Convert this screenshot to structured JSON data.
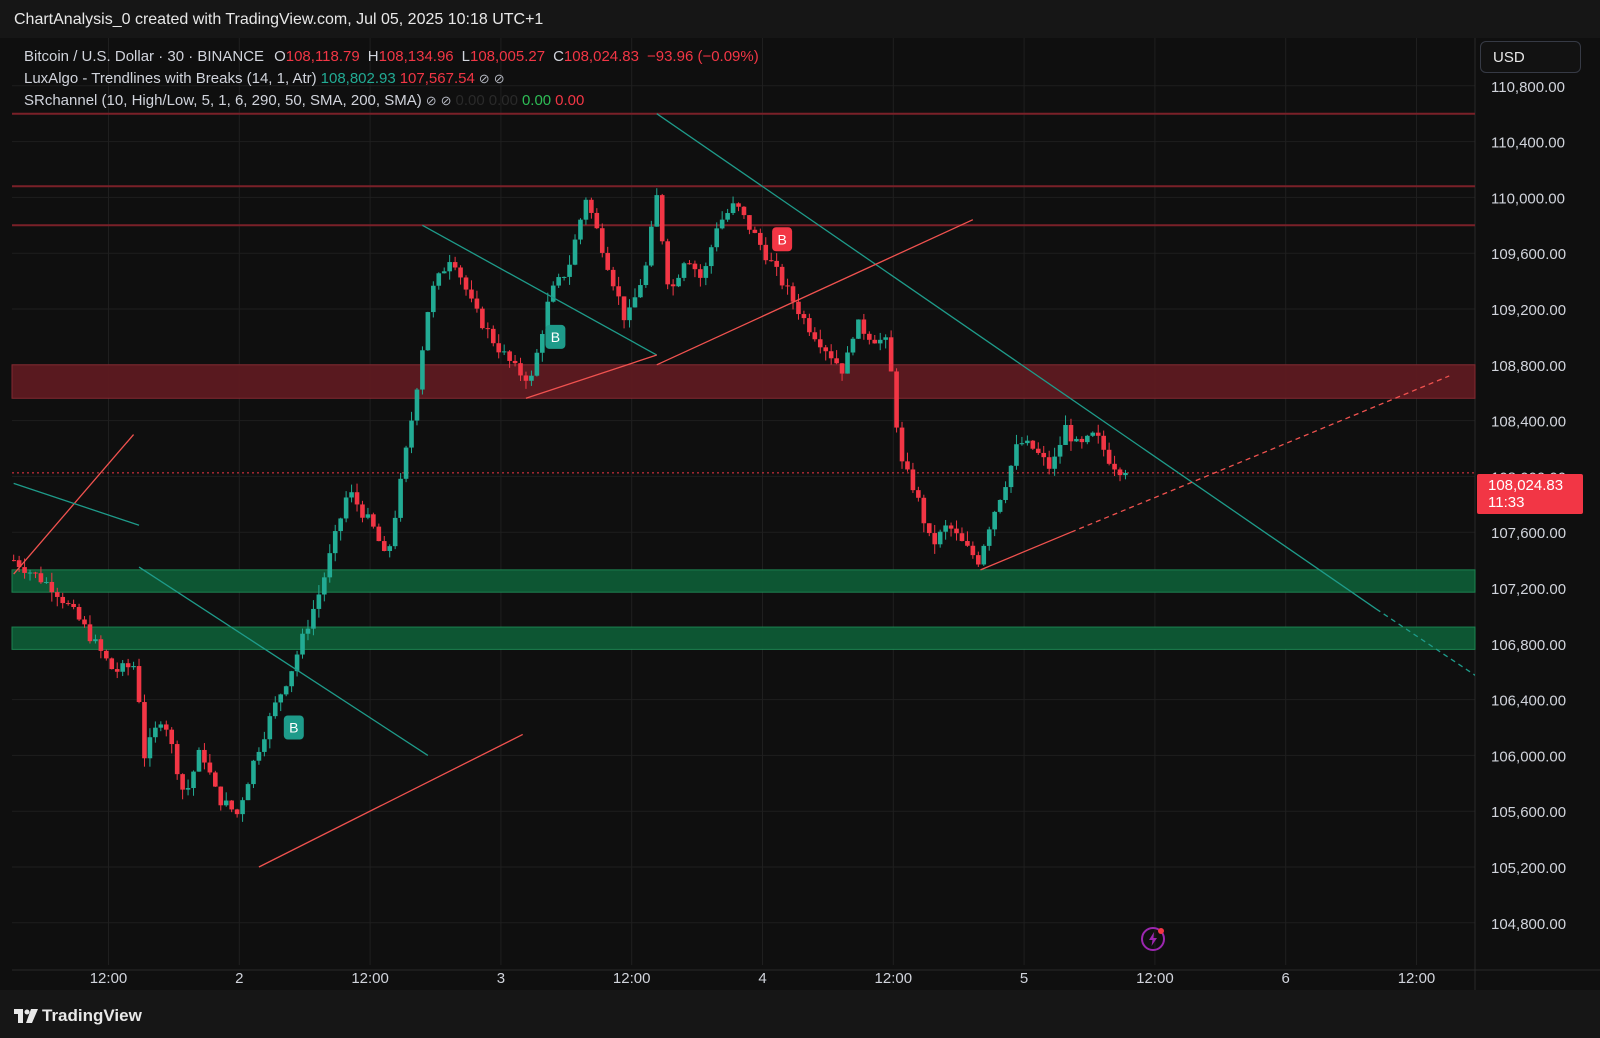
{
  "header": {
    "title": "ChartAnalysis_0 created with TradingView.com, Jul 05, 2025 10:18 UTC+1"
  },
  "legend": {
    "symbol": "Bitcoin / U.S. Dollar · 30 · BINANCE",
    "open_label": "O",
    "open": "108,118.79",
    "high_label": "H",
    "high": "108,134.96",
    "low_label": "L",
    "low": "108,005.27",
    "close_label": "C",
    "close": "108,024.83",
    "change": "−93.96 (−0.09%)",
    "indicator1": "LuxAlgo - Trendlines with Breaks (14, 1, Atr)",
    "indicator1_v1": "108,802.93",
    "indicator1_v2": "107,567.54",
    "indicator2": "SRchannel (10, High/Low, 5, 1, 6, 290, 50, SMA, 200, SMA)",
    "indicator2_v1": "0.00",
    "indicator2_v2": "0.00",
    "indicator2_v3": "0.00",
    "indicator2_v4": "0.00",
    "eye_icon": "eye-off-icon"
  },
  "currency": "USD",
  "last_price": {
    "price": "108,024.83",
    "countdown": "11:33"
  },
  "footer": {
    "brand": "TradingView"
  },
  "colors": {
    "up": "#22ab94",
    "down": "#f23645",
    "resistance_zone": "#5e1a20",
    "support_zone": "#0d5a35",
    "background": "#0f0f0f",
    "grid": "#1f1f1f"
  },
  "chart_data": {
    "type": "candlestick",
    "title": "Bitcoin / U.S. Dollar · 30 · BINANCE",
    "y_ticks": [
      "110,800.00",
      "110,400.00",
      "110,000.00",
      "109,600.00",
      "109,200.00",
      "108,800.00",
      "108,400.00",
      "108,000.00",
      "107,600.00",
      "107,200.00",
      "106,800.00",
      "106,400.00",
      "106,000.00",
      "105,600.00",
      "105,200.00",
      "104,800.00"
    ],
    "y_tick_values": [
      110800,
      110400,
      110000,
      109600,
      109200,
      108800,
      108400,
      108000,
      107600,
      107200,
      106800,
      106400,
      106000,
      105600,
      105200,
      104800
    ],
    "x_ticks": [
      "12:00",
      "2",
      "12:00",
      "3",
      "12:00",
      "4",
      "12:00",
      "5",
      "12:00",
      "6",
      "12:00"
    ],
    "x_tick_hours": [
      12,
      24,
      36,
      48,
      60,
      72,
      84,
      96,
      108,
      120,
      132
    ],
    "x_unit": "hours since Jul 1, 00:00",
    "ylim": [
      104600,
      111400
    ],
    "xlim": [
      3.3,
      135
    ],
    "grid": true,
    "resistance_lines": [
      110600,
      110080,
      109800
    ],
    "zones": [
      {
        "type": "resistance",
        "low": 108560,
        "high": 108800
      },
      {
        "type": "support",
        "low": 107170,
        "high": 107330
      },
      {
        "type": "support",
        "low": 106760,
        "high": 106920
      }
    ],
    "trendlines": [
      {
        "color": "down",
        "points": [
          [
            3.3,
            107300
          ],
          [
            14.3,
            108300
          ]
        ]
      },
      {
        "color": "up",
        "points": [
          [
            3.3,
            107950
          ],
          [
            14.8,
            107650
          ]
        ]
      },
      {
        "color": "up",
        "points": [
          [
            14.8,
            107350
          ],
          [
            41.3,
            106000
          ]
        ]
      },
      {
        "color": "down",
        "points": [
          [
            25.8,
            105200
          ],
          [
            50.0,
            106150
          ]
        ]
      },
      {
        "color": "up",
        "points": [
          [
            40.8,
            109800
          ],
          [
            62.3,
            108870
          ]
        ]
      },
      {
        "color": "down",
        "points": [
          [
            50.3,
            108560
          ],
          [
            62.3,
            108870
          ]
        ]
      },
      {
        "color": "up",
        "points": [
          [
            62.3,
            110600
          ],
          [
            128.3,
            107050
          ],
          [
            138.8,
            106500
          ]
        ],
        "dash_from": 1
      },
      {
        "color": "down",
        "points": [
          [
            62.3,
            108800
          ],
          [
            91.3,
            109840
          ]
        ]
      },
      {
        "color": "down",
        "points": [
          [
            92.0,
            107330
          ],
          [
            100.3,
            107600
          ],
          [
            135.0,
            108720
          ]
        ],
        "dash_from": 1
      }
    ],
    "signals": [
      {
        "label": "B",
        "type": "bullish",
        "hour": 29.0,
        "price": 106200
      },
      {
        "label": "B",
        "type": "bullish",
        "hour": 53.0,
        "price": 109000
      },
      {
        "label": "B",
        "type": "bearish",
        "hour": 73.8,
        "price": 109700
      }
    ],
    "keyframes": [
      [
        3.3,
        107400
      ],
      [
        7.0,
        107200
      ],
      [
        9.5,
        106950
      ],
      [
        12.5,
        106600
      ],
      [
        14.5,
        106650
      ],
      [
        15.3,
        106000
      ],
      [
        17.0,
        106300
      ],
      [
        19.0,
        105700
      ],
      [
        20.5,
        106050
      ],
      [
        22.0,
        105700
      ],
      [
        23.8,
        105580
      ],
      [
        25.5,
        106000
      ],
      [
        27.5,
        106400
      ],
      [
        28.7,
        106600
      ],
      [
        31.5,
        107200
      ],
      [
        34.0,
        107900
      ],
      [
        36.5,
        107600
      ],
      [
        37.5,
        107380
      ],
      [
        38.7,
        107900
      ],
      [
        40.0,
        108500
      ],
      [
        41.5,
        109300
      ],
      [
        43.5,
        109600
      ],
      [
        45.5,
        109200
      ],
      [
        47.5,
        108950
      ],
      [
        49.5,
        108750
      ],
      [
        50.8,
        108700
      ],
      [
        52.5,
        109300
      ],
      [
        54.2,
        109500
      ],
      [
        55.8,
        110000
      ],
      [
        57.5,
        109600
      ],
      [
        59.5,
        109100
      ],
      [
        61.3,
        109500
      ],
      [
        62.3,
        110000
      ],
      [
        63.5,
        109300
      ],
      [
        65.0,
        109600
      ],
      [
        66.5,
        109400
      ],
      [
        67.8,
        109800
      ],
      [
        69.5,
        109950
      ],
      [
        71.5,
        109700
      ],
      [
        73.0,
        109500
      ],
      [
        74.5,
        109300
      ],
      [
        76.0,
        109100
      ],
      [
        78.0,
        108900
      ],
      [
        79.5,
        108750
      ],
      [
        80.5,
        109100
      ],
      [
        82.0,
        109000
      ],
      [
        83.5,
        108950
      ],
      [
        84.7,
        108100
      ],
      [
        86.0,
        107900
      ],
      [
        87.5,
        107500
      ],
      [
        89.0,
        107650
      ],
      [
        90.5,
        107500
      ],
      [
        91.8,
        107400
      ],
      [
        93.0,
        107700
      ],
      [
        94.5,
        108000
      ],
      [
        95.5,
        108250
      ],
      [
        96.8,
        108200
      ],
      [
        98.5,
        108050
      ],
      [
        99.8,
        108350
      ],
      [
        101.0,
        108200
      ],
      [
        102.5,
        108300
      ],
      [
        104.0,
        108100
      ],
      [
        105.3,
        108025
      ]
    ]
  }
}
